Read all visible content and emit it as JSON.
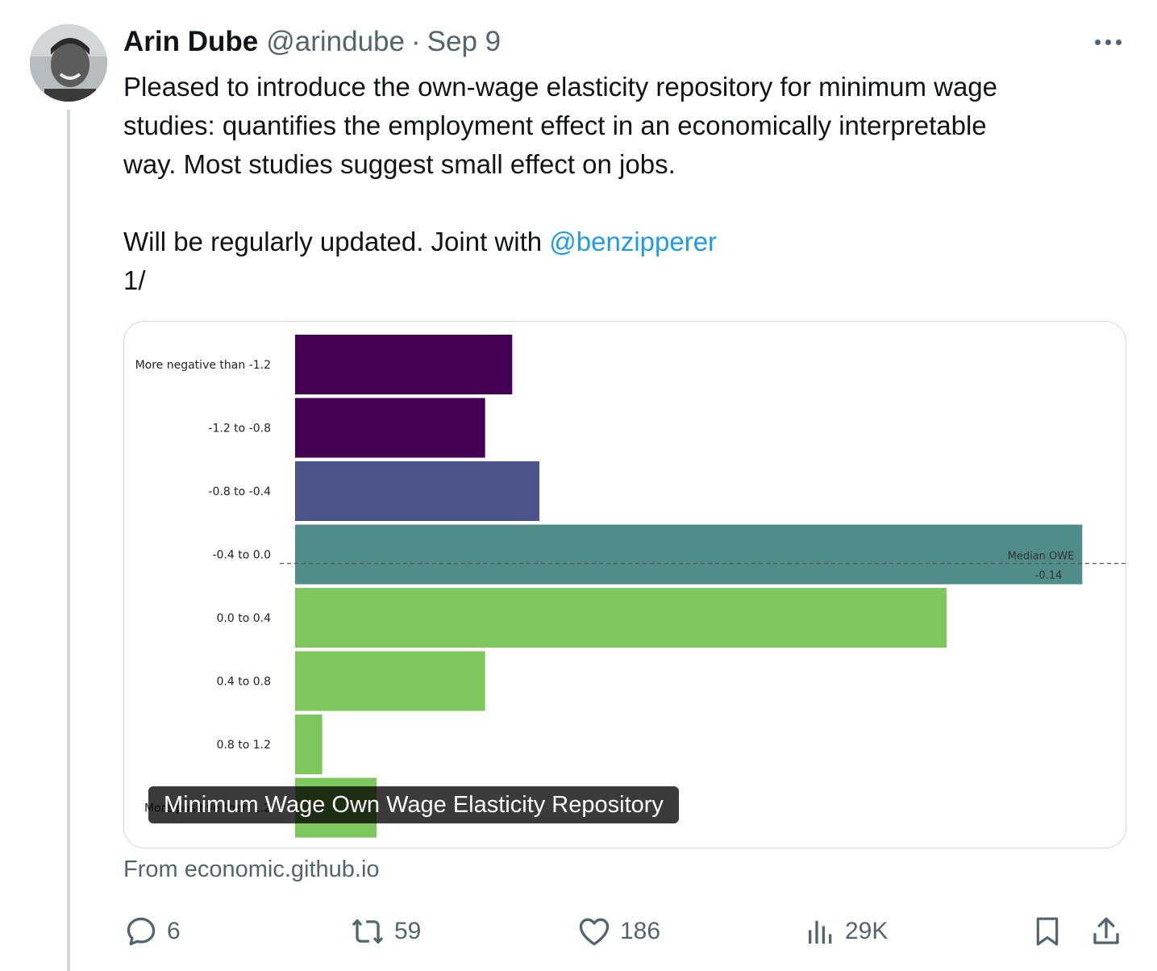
{
  "tweet": {
    "author_name": "Arin Dube",
    "author_handle": "@arindube",
    "separator": "·",
    "date": "Sep 9",
    "text_line1": "Pleased to introduce the own-wage elasticity repository for minimum wage",
    "text_line2": "studies: quantifies the employment effect in an economically interpretable",
    "text_line3": "way.  Most studies suggest small effect on jobs.",
    "text_line4_prefix": "Will be regularly updated. Joint with ",
    "mention": "@benzipperer",
    "text_line5": "1/",
    "icons": {
      "more": "more-dots-icon",
      "avatar": "avatar"
    }
  },
  "card": {
    "title": "Minimum Wage Own Wage Elasticity Repository",
    "source_prefix": "From ",
    "source_domain": "economic.github.io"
  },
  "chart_data": {
    "type": "bar",
    "orientation": "horizontal",
    "categories": [
      "More negative than -1.2",
      "-1.2  to -0.8",
      "-0.8  to -0.4",
      "-0.4  to  0.0",
      "0.0  to  0.4",
      "0.4  to  0.8",
      "0.8  to  1.2",
      "More positive than 1.2"
    ],
    "values": [
      8,
      7,
      9,
      29,
      24,
      7,
      1,
      3
    ],
    "colors": [
      "#440154",
      "#440154",
      "#4a5489",
      "#508c88",
      "#7ec75d",
      "#7ec75d",
      "#7ec75d",
      "#7ec75d"
    ],
    "xlim": [
      0,
      30
    ],
    "annotation": {
      "label": "Median OWE",
      "value": "-0.14",
      "line_style": "dashed"
    },
    "grid": false
  },
  "actions": {
    "reply": {
      "count": "6",
      "icon": "reply-icon"
    },
    "retweet": {
      "count": "59",
      "icon": "retweet-icon"
    },
    "like": {
      "count": "186",
      "icon": "heart-icon"
    },
    "views": {
      "count": "29K",
      "icon": "views-chart-icon"
    },
    "bookmark": {
      "icon": "bookmark-icon"
    },
    "share": {
      "icon": "share-icon"
    }
  }
}
